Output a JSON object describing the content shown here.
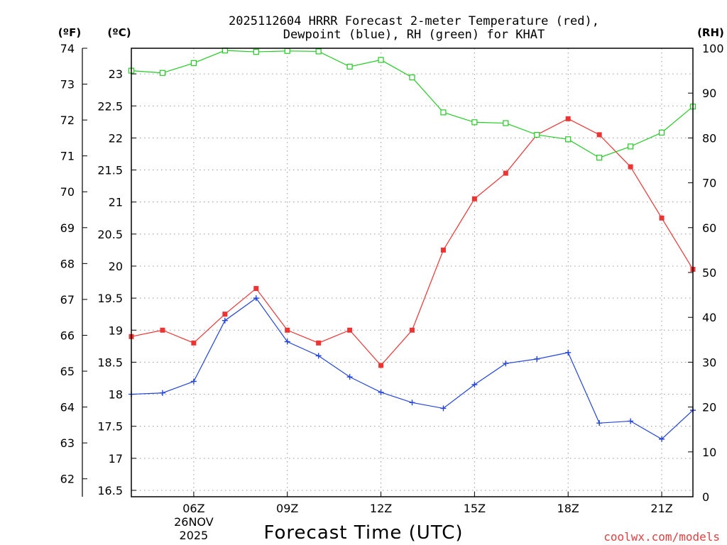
{
  "chart_data": {
    "type": "line",
    "title_line1": "2025112604 HRRR Forecast 2-meter Temperature (red),",
    "title_line2": "Dewpoint (blue), RH (green) for KHAT",
    "xlabel": "Forecast Time (UTC)",
    "credit": "coolwx.com/models",
    "units": {
      "fahrenheit": "(ºF)",
      "celsius": "(ºC)",
      "rh": "(RH)"
    },
    "x_hours": [
      4,
      5,
      6,
      7,
      8,
      9,
      10,
      11,
      12,
      13,
      14,
      15,
      16,
      17,
      18,
      19,
      20,
      21,
      22
    ],
    "xlim": [
      4,
      22
    ],
    "x_ticks": [
      {
        "hour": 6,
        "label": "06Z"
      },
      {
        "hour": 9,
        "label": "09Z"
      },
      {
        "hour": 12,
        "label": "12Z"
      },
      {
        "hour": 15,
        "label": "15Z"
      },
      {
        "hour": 18,
        "label": "18Z"
      },
      {
        "hour": 21,
        "label": "21Z"
      }
    ],
    "date_label": [
      "26NOV",
      "2025"
    ],
    "fahrenheit_axis": {
      "range": [
        61.5,
        74
      ],
      "ticks": [
        62,
        63,
        64,
        65,
        66,
        67,
        68,
        69,
        70,
        71,
        72,
        73,
        74
      ]
    },
    "celsius_axis": {
      "range": [
        16.4,
        23.4
      ],
      "ticks": [
        16.5,
        17,
        17.5,
        18,
        18.5,
        19,
        19.5,
        20,
        20.5,
        21,
        21.5,
        22,
        22.5,
        23
      ]
    },
    "rh_axis": {
      "range": [
        0,
        100
      ],
      "ticks": [
        0,
        10,
        20,
        30,
        40,
        50,
        60,
        70,
        80,
        90,
        100
      ]
    },
    "series": [
      {
        "name": "Temperature",
        "color": "#ee3333",
        "marker": "filled-square",
        "values_c": [
          18.9,
          19.0,
          18.8,
          19.25,
          19.65,
          19.0,
          18.8,
          19.0,
          18.45,
          19.0,
          20.25,
          21.05,
          21.45,
          22.05,
          22.3,
          22.05,
          21.55,
          20.75,
          19.95
        ]
      },
      {
        "name": "Dewpoint",
        "color": "#2244dd",
        "marker": "plus",
        "values_c": [
          18.0,
          18.02,
          18.2,
          19.15,
          19.5,
          18.82,
          18.6,
          18.27,
          18.03,
          17.87,
          17.78,
          18.15,
          18.48,
          18.55,
          18.65,
          17.55,
          17.58,
          17.3,
          17.75
        ]
      },
      {
        "name": "RH",
        "color": "#22cc22",
        "marker": "open-square",
        "values_rh": [
          95,
          94.5,
          96.7,
          99.5,
          99.2,
          99.4,
          99.3,
          95.9,
          97.4,
          93.5,
          85.7,
          83.5,
          83.3,
          80.7,
          79.7,
          75.6,
          78.1,
          81.2,
          87
        ]
      }
    ]
  }
}
